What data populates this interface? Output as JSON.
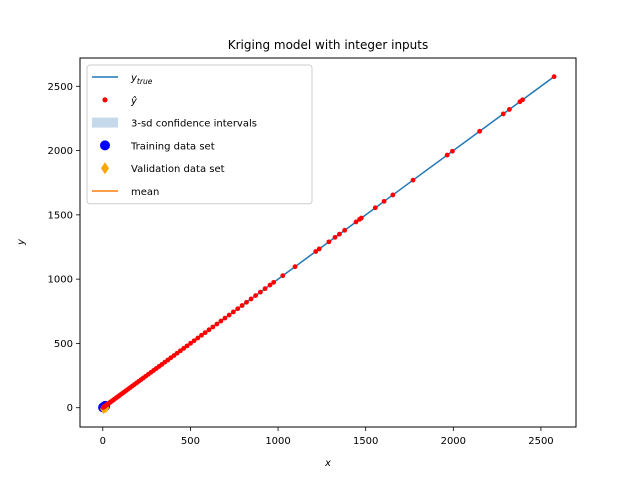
{
  "chart_data": {
    "type": "scatter",
    "title": "Kriging model with integer inputs",
    "xlabel": "x",
    "ylabel": "y",
    "xlim": [
      -130,
      2700
    ],
    "ylim": [
      -150,
      2720
    ],
    "xticks": [
      0,
      500,
      1000,
      1500,
      2000,
      2500
    ],
    "yticks": [
      0,
      500,
      1000,
      1500,
      2000,
      2500
    ],
    "grid": false,
    "legend_position": "upper-left",
    "legend": [
      {
        "key": "ytrue",
        "label": "y",
        "label_sub": "true",
        "marker": "line",
        "color": "#1f77b4"
      },
      {
        "key": "yhat",
        "label": "ŷ",
        "marker": "dot",
        "color": "#ff0000"
      },
      {
        "key": "ci",
        "label": "3-sd confidence intervals",
        "marker": "patch",
        "color": "#c6d9ea"
      },
      {
        "key": "train",
        "label": "Training data set",
        "marker": "circle",
        "color": "#0000ff"
      },
      {
        "key": "valid",
        "label": "Validation data set",
        "marker": "diamond",
        "color": "#ffa500"
      },
      {
        "key": "mean",
        "label": "mean",
        "marker": "line",
        "color": "#ff7f0e"
      }
    ],
    "series": [
      {
        "key": "ytrue",
        "type": "line",
        "color": "#1f77b4",
        "x": [
          0,
          2580
        ],
        "y": [
          0,
          2580
        ]
      },
      {
        "key": "mean",
        "type": "line",
        "color": "#ff7f0e",
        "x": [
          0,
          20
        ],
        "y": [
          0,
          20
        ]
      },
      {
        "key": "yhat",
        "type": "scatter",
        "color": "#ff0000",
        "x": [
          2,
          5,
          8,
          12,
          15,
          20,
          25,
          30,
          36,
          42,
          48,
          55,
          62,
          70,
          78,
          86,
          95,
          104,
          114,
          124,
          134,
          145,
          156,
          168,
          180,
          192,
          205,
          218,
          231,
          245,
          260,
          275,
          290,
          305,
          321,
          337,
          354,
          371,
          388,
          406,
          424,
          443,
          462,
          481,
          501,
          521,
          542,
          563,
          584,
          606,
          628,
          651,
          674,
          697,
          721,
          745,
          770,
          795,
          820,
          846,
          872,
          899,
          926,
          954,
          975,
          1027,
          1097,
          1215,
          1235,
          1290,
          1325,
          1350,
          1380,
          1445,
          1465,
          1475,
          1555,
          1605,
          1655,
          1770,
          1965,
          1995,
          2150,
          2285,
          2320,
          2380,
          2395,
          2575
        ],
        "y": [
          2,
          5,
          8,
          12,
          15,
          20,
          25,
          30,
          36,
          42,
          48,
          55,
          62,
          70,
          78,
          86,
          95,
          104,
          114,
          124,
          134,
          145,
          156,
          168,
          180,
          192,
          205,
          218,
          231,
          245,
          260,
          275,
          290,
          305,
          321,
          337,
          354,
          371,
          388,
          406,
          424,
          443,
          462,
          481,
          501,
          521,
          542,
          563,
          584,
          606,
          628,
          651,
          674,
          697,
          721,
          745,
          770,
          795,
          820,
          846,
          872,
          899,
          926,
          954,
          975,
          1027,
          1097,
          1215,
          1235,
          1290,
          1325,
          1350,
          1380,
          1445,
          1465,
          1475,
          1555,
          1605,
          1655,
          1770,
          1965,
          1995,
          2150,
          2285,
          2320,
          2380,
          2395,
          2575
        ]
      },
      {
        "key": "train",
        "type": "scatter",
        "color": "#0000ff",
        "x": [
          2,
          8,
          14
        ],
        "y": [
          2,
          8,
          14
        ]
      },
      {
        "key": "valid",
        "type": "scatter",
        "color": "#ffa500",
        "x": [
          4,
          10,
          18
        ],
        "y": [
          -10,
          -5,
          0
        ]
      }
    ]
  }
}
